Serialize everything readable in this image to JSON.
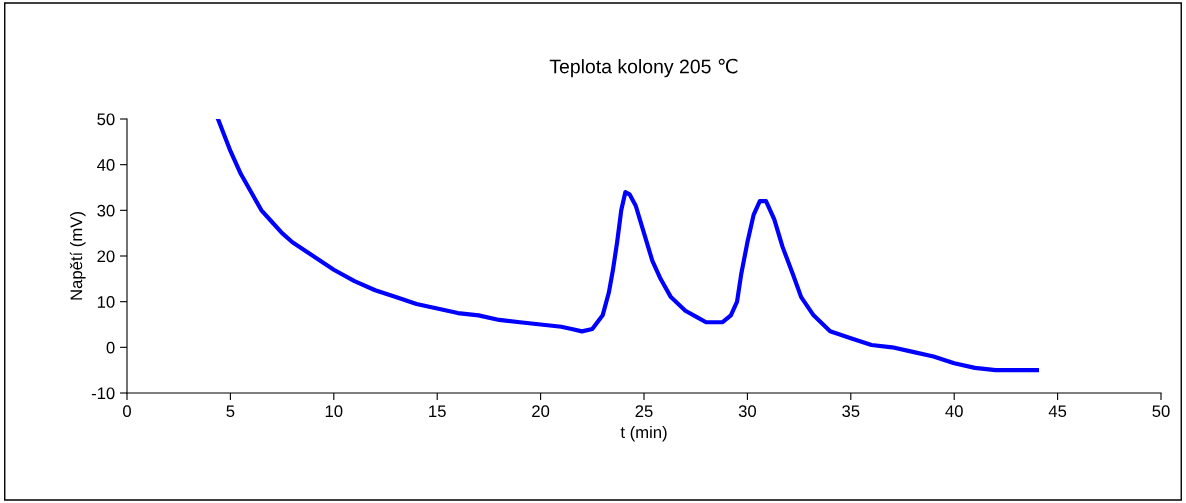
{
  "chart_data": {
    "type": "line",
    "title": "Teplota kolony 205 ℃",
    "xlabel": "t (min)",
    "ylabel": "Napětí (mV)",
    "xlim": [
      0,
      50
    ],
    "xticks": [
      0,
      5,
      10,
      15,
      20,
      25,
      30,
      35,
      40,
      45,
      50
    ],
    "ylim": [
      -10,
      50
    ],
    "yticks": [
      -10,
      0,
      10,
      20,
      30,
      40,
      50
    ],
    "grid": false,
    "legend": false,
    "marker": "none",
    "line_style": "solid",
    "series": [
      {
        "color": "#0000ff",
        "x": [
          4.4,
          5,
          5.5,
          6,
          6.5,
          7,
          7.5,
          8,
          9,
          10,
          11,
          12,
          13,
          14,
          15,
          16,
          17,
          18,
          19,
          20,
          21,
          21.5,
          22,
          22.5,
          23,
          23.3,
          23.5,
          23.7,
          23.9,
          24.1,
          24.3,
          24.6,
          25,
          25.4,
          25.8,
          26.3,
          27,
          27.6,
          28,
          28.8,
          29.2,
          29.5,
          29.7,
          30,
          30.3,
          30.6,
          30.9,
          31.3,
          31.7,
          32.2,
          32.6,
          33.2,
          34,
          35,
          36,
          37,
          38,
          39,
          40,
          41,
          42,
          43,
          44
        ],
        "values": [
          50,
          43,
          38,
          34,
          30,
          27.5,
          25,
          23,
          20,
          17,
          14.5,
          12.5,
          11,
          9.5,
          8.5,
          7.5,
          7,
          6,
          5.5,
          5,
          4.5,
          4,
          3.5,
          4,
          7,
          12,
          17,
          23,
          30,
          34,
          33.5,
          31,
          25,
          19,
          15,
          11,
          8,
          6.5,
          5.5,
          5.5,
          7,
          10,
          16,
          23,
          29,
          32,
          32,
          28,
          22,
          16,
          11,
          7,
          3.5,
          2,
          0.5,
          0,
          -1,
          -2,
          -3.5,
          -4.5,
          -5,
          -5,
          -5
        ]
      }
    ]
  }
}
